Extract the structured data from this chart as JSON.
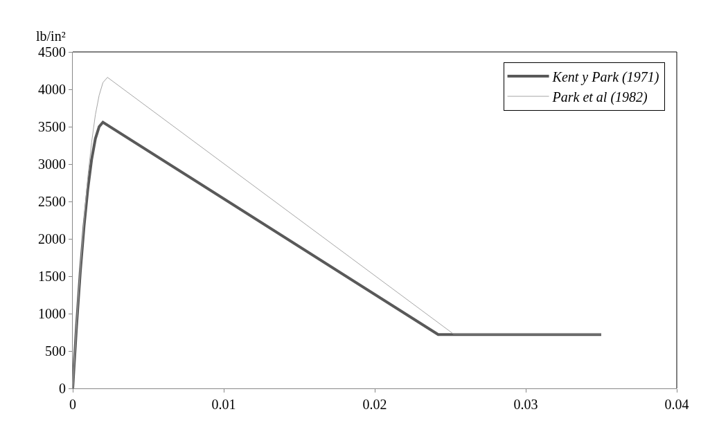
{
  "chart_data": {
    "type": "line",
    "ylabel": "lb/in²",
    "xlim": [
      0,
      0.04
    ],
    "xticks": [
      0,
      0.01,
      0.02,
      0.03,
      0.04
    ],
    "ylim": [
      0,
      4500
    ],
    "yticks": [
      0,
      500,
      1000,
      1500,
      2000,
      2500,
      3000,
      3500,
      4000,
      4500
    ],
    "legend": "top right",
    "marker": "none",
    "line_style": "solid",
    "series": [
      {
        "name": "Kent y Park (1971)",
        "color": "#595959",
        "x": [
          0,
          0.00025,
          0.0005,
          0.00075,
          0.001,
          0.00125,
          0.0015,
          0.00175,
          0.002,
          0.0242,
          0.035
        ],
        "values": [
          0,
          830,
          1560,
          2170,
          2670,
          3060,
          3340,
          3500,
          3560,
          720,
          720
        ]
      },
      {
        "name": "Park et al (1982)",
        "color": "#a6a6a6",
        "x": [
          0,
          0.00025,
          0.0005,
          0.00075,
          0.001,
          0.00125,
          0.0015,
          0.00175,
          0.002,
          0.0023,
          0.0252,
          0.035
        ],
        "values": [
          0,
          860,
          1610,
          2270,
          2830,
          3290,
          3660,
          3920,
          4090,
          4160,
          730,
          730
        ]
      }
    ]
  }
}
